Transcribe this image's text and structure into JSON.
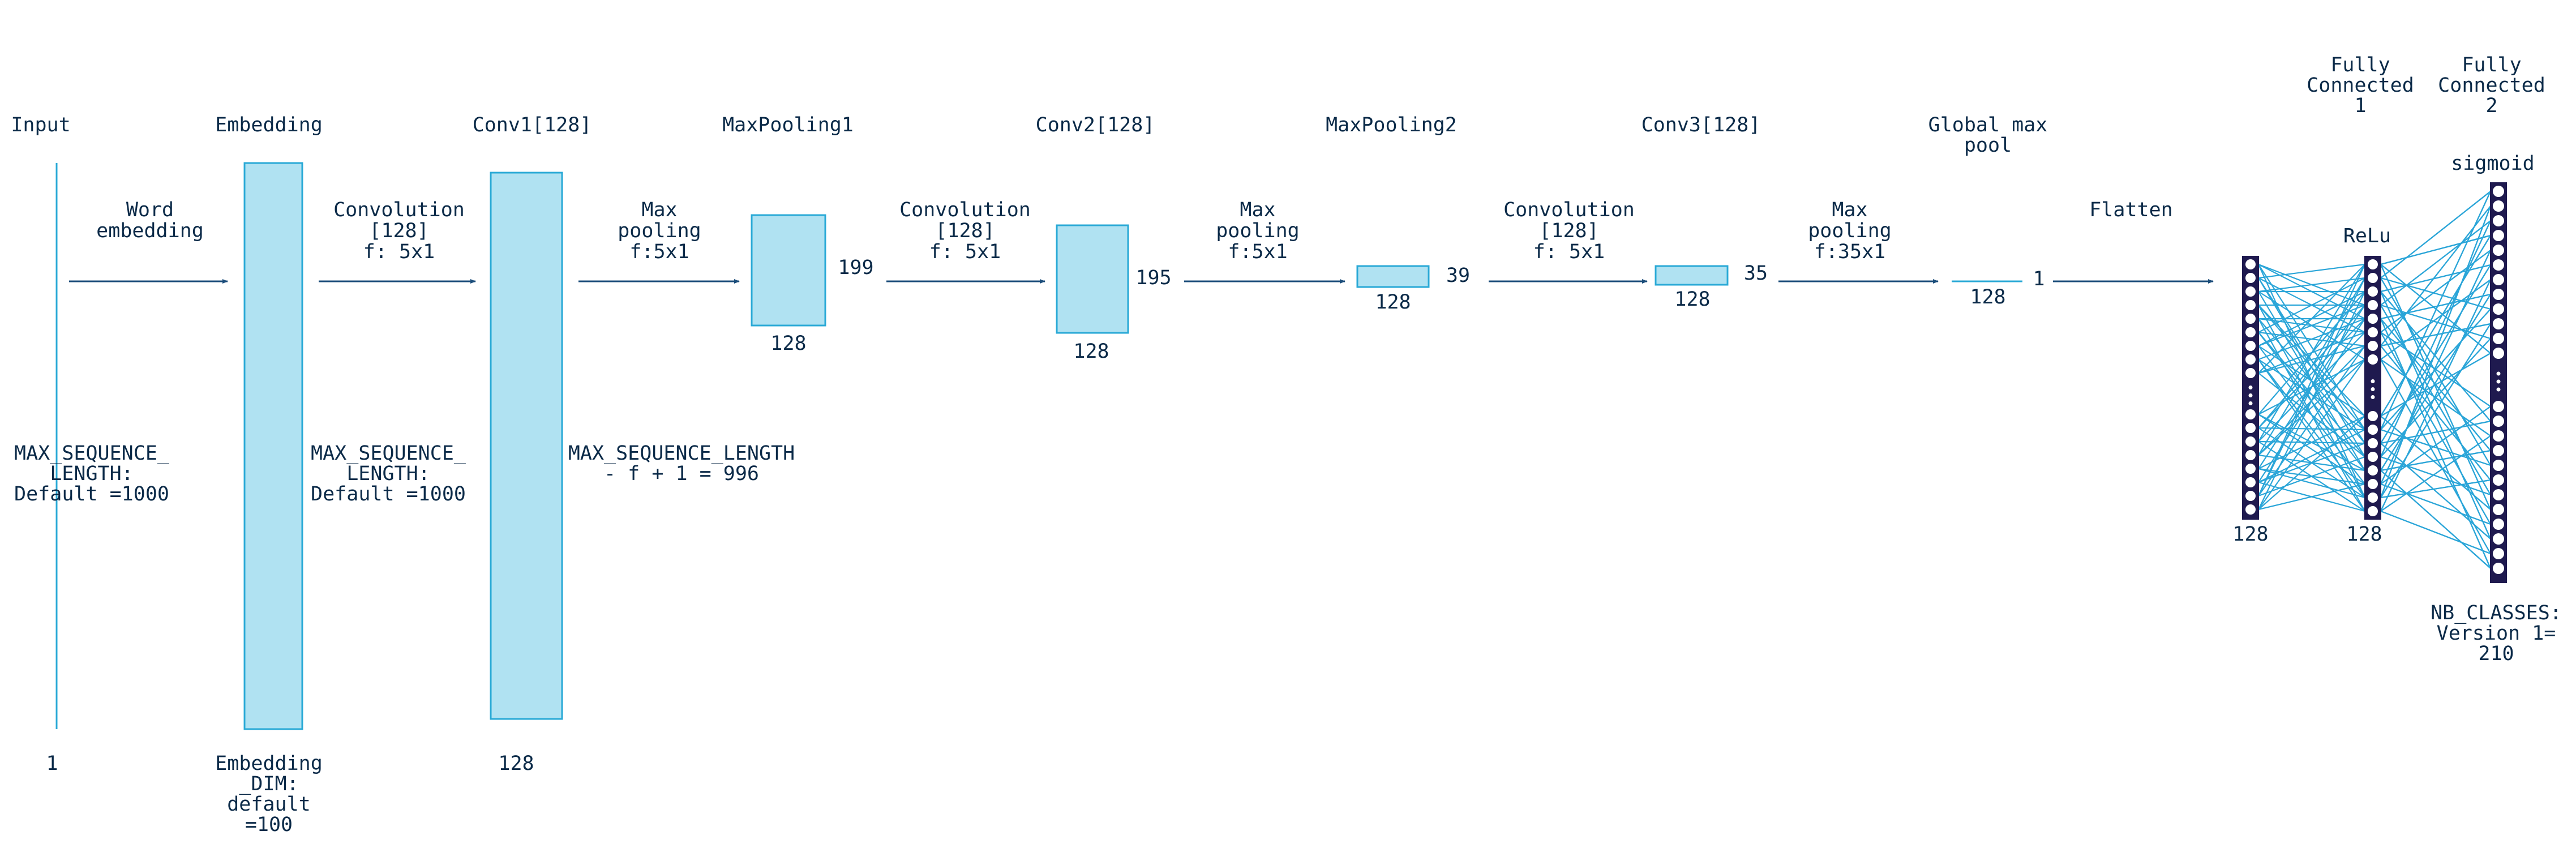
{
  "colors": {
    "layer_fill": "#b0e2f2",
    "layer_stroke": "#29a9d6",
    "arrow": "#1b4d7a",
    "text": "#0b2a48",
    "dense_column": "#1f1a4f",
    "neuron": "#ffffff",
    "edge": "#2aa5d8"
  },
  "layers": {
    "input": {
      "title": "Input",
      "dim_desc": "MAX_SEQUENCE_\nLENGTH:\nDefault =1000",
      "depth": "1"
    },
    "embedding": {
      "title": "Embedding",
      "dim_desc": "MAX_SEQUENCE_\nLENGTH:\nDefault =1000",
      "depth": "Embedding\n_DIM:\ndefault\n=100"
    },
    "conv1": {
      "title": "Conv1[128]",
      "dim_desc": "MAX_SEQUENCE_LENGTH\n- f + 1 = 996",
      "depth": "128"
    },
    "maxpool1": {
      "title": "MaxPooling1",
      "length": "199",
      "depth": "128"
    },
    "conv2": {
      "title": "Conv2[128]",
      "length": "195",
      "depth": "128"
    },
    "maxpool2": {
      "title": "MaxPooling2",
      "length": "39",
      "depth": "128"
    },
    "conv3": {
      "title": "Conv3[128]",
      "length": "35",
      "depth": "128"
    },
    "global_pool": {
      "title": "Global max\npool",
      "length": "1",
      "depth": "128"
    },
    "fc1": {
      "title": "Fully\nConnected\n1",
      "activation": "ReLu",
      "size": "128"
    },
    "fc2": {
      "title": "Fully\nConnected\n2",
      "activation": "sigmoid",
      "size": "NB_CLASSES:\n\nVersion 1=\n210"
    },
    "flatten_output": {
      "size": "128"
    }
  },
  "operations": {
    "word_embedding": "Word\nembedding",
    "conv_a": "Convolution\n[128]\nf: 5x1",
    "pool_a": "Max\npooling\nf:5x1",
    "conv_b": "Convolution\n[128]\nf: 5x1",
    "pool_b": "Max\npooling\nf:5x1",
    "conv_c": "Convolution\n[128]\nf: 5x1",
    "pool_c": "Max\npooling\nf:35x1",
    "flatten": "Flatten"
  }
}
